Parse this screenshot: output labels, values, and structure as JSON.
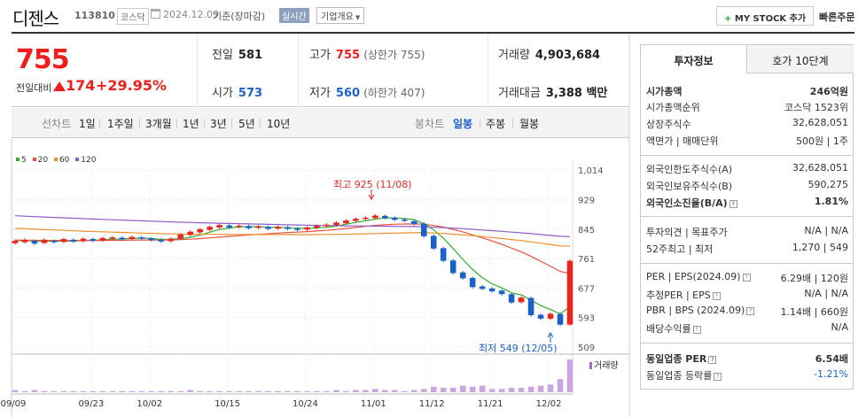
{
  "header": {
    "stock_name": "디젠스",
    "stock_code": "113810",
    "market": "코스닥",
    "date": "2024.12.09",
    "basis": "기준(장마감)",
    "realtime_badge": "실시간",
    "overview_label": "기업개요",
    "mystock_plus": "+",
    "mystock_label": "MY STOCK 추가",
    "quick_order": "빠른주문"
  },
  "price": {
    "current": "755",
    "change_label": "전일대비",
    "change": "174",
    "change_pct": "+29.95%",
    "direction": "up",
    "prev_close_label": "전일",
    "prev_close": "581",
    "open_label": "시가",
    "open": "573",
    "high_label": "고가",
    "high": "755",
    "high_sub": "(상한가 755)",
    "low_label": "저가",
    "low": "560",
    "low_sub": "(하한가 407)",
    "volume_label": "거래량",
    "volume": "4,903,684",
    "amount_label": "거래대금",
    "amount": "3,388 백만"
  },
  "tabs": {
    "line_label": "선차트",
    "periods": [
      "1일",
      "1주일",
      "3개월",
      "1년",
      "3년",
      "5년",
      "10년"
    ],
    "candle_label": "봉차트",
    "candle_types": [
      "일봉",
      "주봉",
      "월봉"
    ],
    "candle_active": "일봉"
  },
  "legend": [
    {
      "label": "5",
      "color": "#33aa33"
    },
    {
      "label": "20",
      "color": "#e8523b"
    },
    {
      "label": "60",
      "color": "#e8902b"
    },
    {
      "label": "120",
      "color": "#8e5bc8"
    }
  ],
  "chart_data": {
    "type": "candlestick",
    "y_ticks": [
      "1,014",
      "929",
      "845",
      "761",
      "677",
      "593",
      "509"
    ],
    "x_ticks": [
      "09/09",
      "09/23",
      "10/02",
      "10/15",
      "10/24",
      "11/01",
      "11/12",
      "11/21",
      "12/02"
    ],
    "ylim": [
      480,
      1050
    ],
    "high_annotation": "최고 925 (11/08)",
    "low_annotation": "최저 549 (12/05)",
    "volume_label": "거래량",
    "up_color": "#e8261f",
    "down_color": "#1c61c9",
    "candles": [
      {
        "o": 805,
        "c": 812
      },
      {
        "o": 808,
        "c": 815
      },
      {
        "o": 812,
        "c": 804
      },
      {
        "o": 806,
        "c": 815
      },
      {
        "o": 812,
        "c": 808
      },
      {
        "o": 809,
        "c": 817
      },
      {
        "o": 815,
        "c": 810
      },
      {
        "o": 811,
        "c": 818
      },
      {
        "o": 817,
        "c": 812
      },
      {
        "o": 813,
        "c": 820
      },
      {
        "o": 818,
        "c": 822
      },
      {
        "o": 821,
        "c": 816
      },
      {
        "o": 817,
        "c": 823
      },
      {
        "o": 822,
        "c": 818
      },
      {
        "o": 819,
        "c": 814
      },
      {
        "o": 815,
        "c": 810
      },
      {
        "o": 811,
        "c": 818
      },
      {
        "o": 818,
        "c": 830
      },
      {
        "o": 829,
        "c": 838
      },
      {
        "o": 836,
        "c": 845
      },
      {
        "o": 843,
        "c": 852
      },
      {
        "o": 850,
        "c": 857
      },
      {
        "o": 856,
        "c": 850
      },
      {
        "o": 851,
        "c": 855
      },
      {
        "o": 854,
        "c": 848
      },
      {
        "o": 849,
        "c": 853
      },
      {
        "o": 852,
        "c": 846
      },
      {
        "o": 847,
        "c": 852
      },
      {
        "o": 851,
        "c": 846
      },
      {
        "o": 847,
        "c": 843
      },
      {
        "o": 844,
        "c": 850
      },
      {
        "o": 849,
        "c": 855
      },
      {
        "o": 854,
        "c": 858
      },
      {
        "o": 857,
        "c": 864
      },
      {
        "o": 862,
        "c": 870
      },
      {
        "o": 869,
        "c": 875
      },
      {
        "o": 874,
        "c": 878
      },
      {
        "o": 877,
        "c": 884
      },
      {
        "o": 883,
        "c": 877
      },
      {
        "o": 878,
        "c": 872
      },
      {
        "o": 873,
        "c": 869
      },
      {
        "o": 868,
        "c": 860
      },
      {
        "o": 861,
        "c": 825
      },
      {
        "o": 826,
        "c": 790
      },
      {
        "o": 791,
        "c": 755
      },
      {
        "o": 756,
        "c": 720
      },
      {
        "o": 722,
        "c": 705
      },
      {
        "o": 706,
        "c": 680
      },
      {
        "o": 682,
        "c": 675
      },
      {
        "o": 676,
        "c": 668
      },
      {
        "o": 670,
        "c": 660
      },
      {
        "o": 660,
        "c": 636
      },
      {
        "o": 637,
        "c": 650
      },
      {
        "o": 649,
        "c": 600
      },
      {
        "o": 601,
        "c": 590
      },
      {
        "o": 590,
        "c": 604
      },
      {
        "o": 603,
        "c": 573
      },
      {
        "o": 573,
        "c": 755
      }
    ],
    "volumes": [
      2,
      1,
      2,
      1,
      1,
      1,
      1,
      1,
      1,
      1,
      1,
      1,
      1,
      1,
      1,
      1,
      1,
      1,
      2,
      1,
      1,
      1,
      1,
      1,
      1,
      1,
      1,
      1,
      1,
      1,
      1,
      1,
      1,
      2,
      1,
      2,
      2,
      3,
      2,
      2,
      1,
      2,
      3,
      5,
      4,
      4,
      6,
      5,
      6,
      3,
      3,
      4,
      4,
      5,
      6,
      7,
      12,
      30
    ]
  },
  "sidebar": {
    "tab_info": "투자정보",
    "tab_quote": "호가 10단계",
    "market_cap_label": "시가총액",
    "market_cap": "246억원",
    "rank_label": "시가총액순위",
    "rank": "코스닥 1523위",
    "shares_label": "상장주식수",
    "shares": "32,628,051",
    "par_label": "액면가 | 매매단위",
    "par": "500원 | 1주",
    "foreign_limit_label": "외국인한도주식수(A)",
    "foreign_limit": "32,628,051",
    "foreign_hold_label": "외국인보유주식수(B)",
    "foreign_hold": "590,275",
    "foreign_ratio_label": "외국인소진율(B/A)",
    "foreign_ratio": "1.81%",
    "opinion_label": "투자의견 | 목표주가",
    "opinion": "N/A | N/A",
    "week52_label": "52주최고 | 최저",
    "week52": "1,270 | 549",
    "per_label": "PER | EPS(2024.09)",
    "per": "6.29배 | 120원",
    "est_per_label": "추정PER | EPS",
    "est_per": "N/A | N/A",
    "pbr_label": "PBR | BPS (2024.09)",
    "pbr": "1.14배 | 660원",
    "div_label": "배당수익률",
    "div": "N/A",
    "sector_per_label": "동일업종 PER",
    "sector_per": "6.54배",
    "sector_chg_label": "동일업종 등락률",
    "sector_chg": "-1.21%"
  }
}
